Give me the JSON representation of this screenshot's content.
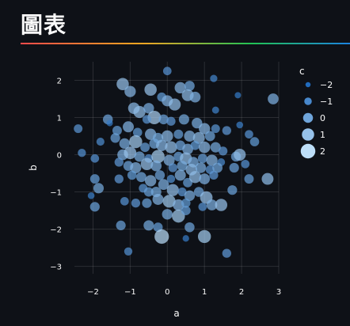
{
  "page": {
    "title": "圖表"
  },
  "chart_data": {
    "type": "scatter",
    "xlabel": "a",
    "ylabel": "b",
    "xlim": [
      -2.5,
      3
    ],
    "ylim": [
      -3.2,
      2.5
    ],
    "x_ticks": [
      -2,
      -1,
      0,
      1,
      2,
      3
    ],
    "y_ticks": [
      -3,
      -2,
      -1,
      0,
      1,
      2
    ],
    "x_tick_labels": [
      "−2",
      "−1",
      "0",
      "1",
      "2",
      "3"
    ],
    "y_tick_labels": [
      "−3",
      "−2",
      "−1",
      "0",
      "1",
      "2"
    ],
    "grid": true,
    "legend": {
      "title": "c",
      "position": "right",
      "items": [
        {
          "label": "−2",
          "value": -2
        },
        {
          "label": "−1",
          "value": -1
        },
        {
          "label": "0",
          "value": 0
        },
        {
          "label": "1",
          "value": 1
        },
        {
          "label": "2",
          "value": 2
        }
      ]
    },
    "colors": {
      "low": "#0d5db6",
      "high": "#d0ecff"
    },
    "points": [
      {
        "a": 0.0,
        "b": 2.25,
        "c": -0.6
      },
      {
        "a": -1.2,
        "b": 1.9,
        "c": 1.0
      },
      {
        "a": -1.0,
        "b": 1.7,
        "c": 0.6
      },
      {
        "a": -0.45,
        "b": 1.75,
        "c": 1.0
      },
      {
        "a": -0.15,
        "b": 1.55,
        "c": -0.3
      },
      {
        "a": 0.35,
        "b": 1.8,
        "c": 0.6
      },
      {
        "a": 0.6,
        "b": 1.85,
        "c": 0.1
      },
      {
        "a": 0.55,
        "b": 1.6,
        "c": 0.8
      },
      {
        "a": 0.75,
        "b": 1.55,
        "c": 0.4
      },
      {
        "a": 0.0,
        "b": 1.45,
        "c": 0.5
      },
      {
        "a": 0.2,
        "b": 1.35,
        "c": 0.9
      },
      {
        "a": -0.9,
        "b": 1.25,
        "c": 0.7
      },
      {
        "a": -0.75,
        "b": 1.15,
        "c": 0.9
      },
      {
        "a": -0.5,
        "b": 1.25,
        "c": 0.3
      },
      {
        "a": -0.35,
        "b": 1.0,
        "c": 1.5
      },
      {
        "a": -0.55,
        "b": 0.95,
        "c": -0.5
      },
      {
        "a": -0.1,
        "b": 0.95,
        "c": 0.0
      },
      {
        "a": 0.1,
        "b": 0.9,
        "c": -0.4
      },
      {
        "a": 0.45,
        "b": 0.95,
        "c": 0.2
      },
      {
        "a": 0.8,
        "b": 0.85,
        "c": 0.3
      },
      {
        "a": 1.0,
        "b": 0.7,
        "c": 0.6
      },
      {
        "a": 1.3,
        "b": 1.2,
        "c": -1.2
      },
      {
        "a": 1.25,
        "b": 2.05,
        "c": -1.1
      },
      {
        "a": 1.9,
        "b": 1.6,
        "c": -1.5
      },
      {
        "a": 2.85,
        "b": 1.5,
        "c": 0.4
      },
      {
        "a": 1.95,
        "b": 0.8,
        "c": -1.3
      },
      {
        "a": 2.2,
        "b": 0.55,
        "c": -0.6
      },
      {
        "a": 2.35,
        "b": 0.35,
        "c": -0.3
      },
      {
        "a": 1.6,
        "b": 0.65,
        "c": -0.4
      },
      {
        "a": 1.3,
        "b": 0.7,
        "c": -0.5
      },
      {
        "a": 1.15,
        "b": 0.5,
        "c": 0.1
      },
      {
        "a": -1.6,
        "b": 0.95,
        "c": 0.0
      },
      {
        "a": -1.55,
        "b": 0.85,
        "c": -1.5
      },
      {
        "a": -1.35,
        "b": 0.65,
        "c": -0.2
      },
      {
        "a": -1.05,
        "b": 0.75,
        "c": 0.5
      },
      {
        "a": -0.8,
        "b": 0.6,
        "c": -0.3
      },
      {
        "a": -0.45,
        "b": 0.55,
        "c": 0.6
      },
      {
        "a": -0.25,
        "b": 0.45,
        "c": 0.2
      },
      {
        "a": 0.0,
        "b": 0.5,
        "c": 0.7
      },
      {
        "a": 0.3,
        "b": 0.55,
        "c": -0.2
      },
      {
        "a": 0.6,
        "b": 0.5,
        "c": 0.5
      },
      {
        "a": 0.85,
        "b": 0.45,
        "c": 0.8
      },
      {
        "a": -2.4,
        "b": 0.7,
        "c": -0.5
      },
      {
        "a": -2.3,
        "b": 0.05,
        "c": -0.7
      },
      {
        "a": -1.8,
        "b": 0.35,
        "c": -0.8
      },
      {
        "a": -1.4,
        "b": 0.45,
        "c": -0.1
      },
      {
        "a": -1.15,
        "b": 0.3,
        "c": 0.3
      },
      {
        "a": -0.85,
        "b": 0.35,
        "c": 1.3
      },
      {
        "a": -0.6,
        "b": 0.2,
        "c": -0.2
      },
      {
        "a": -0.35,
        "b": 0.3,
        "c": 0.1
      },
      {
        "a": -0.15,
        "b": 0.25,
        "c": 0.6
      },
      {
        "a": 0.1,
        "b": 0.2,
        "c": 0.9
      },
      {
        "a": 0.35,
        "b": 0.25,
        "c": 0.0
      },
      {
        "a": 0.55,
        "b": 0.15,
        "c": 0.4
      },
      {
        "a": 0.75,
        "b": 0.25,
        "c": -0.3
      },
      {
        "a": 1.0,
        "b": 0.2,
        "c": 0.7
      },
      {
        "a": 1.3,
        "b": 0.2,
        "c": 0.2
      },
      {
        "a": 1.5,
        "b": 0.1,
        "c": -0.4
      },
      {
        "a": 1.85,
        "b": -0.05,
        "c": 0.0
      },
      {
        "a": 1.95,
        "b": 0.0,
        "c": 0.9
      },
      {
        "a": 2.1,
        "b": -0.25,
        "c": -0.6
      },
      {
        "a": -1.95,
        "b": -0.1,
        "c": -0.6
      },
      {
        "a": -1.2,
        "b": 0.0,
        "c": 0.4
      },
      {
        "a": -1.0,
        "b": 0.05,
        "c": 1.1
      },
      {
        "a": -0.75,
        "b": -0.05,
        "c": 0.2
      },
      {
        "a": -0.5,
        "b": -0.1,
        "c": -0.6
      },
      {
        "a": -0.25,
        "b": -0.05,
        "c": 1.4
      },
      {
        "a": 0.05,
        "b": -0.15,
        "c": 0.5
      },
      {
        "a": 0.3,
        "b": -0.05,
        "c": -0.1
      },
      {
        "a": 0.5,
        "b": -0.1,
        "c": 0.9
      },
      {
        "a": 0.7,
        "b": -0.2,
        "c": 0.3
      },
      {
        "a": 0.95,
        "b": -0.1,
        "c": -0.2
      },
      {
        "a": 1.2,
        "b": -0.15,
        "c": 0.6
      },
      {
        "a": 1.45,
        "b": -0.2,
        "c": -0.9
      },
      {
        "a": -1.3,
        "b": -0.2,
        "c": -0.4
      },
      {
        "a": -1.05,
        "b": -0.3,
        "c": 0.0
      },
      {
        "a": -0.85,
        "b": -0.35,
        "c": 0.5
      },
      {
        "a": -0.55,
        "b": -0.25,
        "c": 1.0
      },
      {
        "a": -0.3,
        "b": -0.3,
        "c": 0.4
      },
      {
        "a": 0.15,
        "b": -0.35,
        "c": -0.4
      },
      {
        "a": 0.4,
        "b": -0.3,
        "c": 0.2
      },
      {
        "a": 0.65,
        "b": -0.4,
        "c": 0.7
      },
      {
        "a": 0.9,
        "b": -0.35,
        "c": 0.3
      },
      {
        "a": 1.15,
        "b": -0.4,
        "c": -0.5
      },
      {
        "a": 1.35,
        "b": -0.35,
        "c": 0.1
      },
      {
        "a": 1.8,
        "b": -0.35,
        "c": -0.1
      },
      {
        "a": 2.2,
        "b": -0.65,
        "c": -0.2
      },
      {
        "a": 2.7,
        "b": -0.65,
        "c": 0.8
      },
      {
        "a": -1.95,
        "b": -0.65,
        "c": -0.2
      },
      {
        "a": -1.85,
        "b": -0.9,
        "c": 0.2
      },
      {
        "a": -2.05,
        "b": -1.1,
        "c": -1.3
      },
      {
        "a": -1.95,
        "b": -1.4,
        "c": -0.1
      },
      {
        "a": -1.3,
        "b": -0.65,
        "c": -0.4
      },
      {
        "a": -1.15,
        "b": -1.25,
        "c": -0.6
      },
      {
        "a": -0.95,
        "b": -0.55,
        "c": -0.3
      },
      {
        "a": -0.7,
        "b": -0.6,
        "c": 0.1
      },
      {
        "a": -0.65,
        "b": -0.9,
        "c": -0.5
      },
      {
        "a": -0.45,
        "b": -0.7,
        "c": 0.6
      },
      {
        "a": -0.2,
        "b": -0.55,
        "c": 0.0
      },
      {
        "a": -0.1,
        "b": -0.8,
        "c": 0.4
      },
      {
        "a": 0.1,
        "b": -0.65,
        "c": -0.7
      },
      {
        "a": 0.35,
        "b": -0.55,
        "c": 0.5
      },
      {
        "a": 0.55,
        "b": -0.75,
        "c": -0.2
      },
      {
        "a": 0.75,
        "b": -0.6,
        "c": 0.9
      },
      {
        "a": 1.0,
        "b": -0.65,
        "c": 0.4
      },
      {
        "a": 1.25,
        "b": -0.55,
        "c": -0.4
      },
      {
        "a": 1.75,
        "b": -0.95,
        "c": -0.1
      },
      {
        "a": -0.5,
        "b": -1.0,
        "c": -0.2
      },
      {
        "a": -0.3,
        "b": -1.0,
        "c": 0.2
      },
      {
        "a": 0.15,
        "b": -0.95,
        "c": 0.9
      },
      {
        "a": 0.4,
        "b": -1.0,
        "c": -0.5
      },
      {
        "a": 0.6,
        "b": -1.1,
        "c": 0.3
      },
      {
        "a": 0.85,
        "b": -1.0,
        "c": 0.0
      },
      {
        "a": 1.05,
        "b": -1.15,
        "c": 1.1
      },
      {
        "a": -0.85,
        "b": -1.3,
        "c": -0.4
      },
      {
        "a": -0.55,
        "b": -1.3,
        "c": -0.1
      },
      {
        "a": -0.25,
        "b": -1.2,
        "c": 0.5
      },
      {
        "a": 0.05,
        "b": -1.25,
        "c": 1.2
      },
      {
        "a": 0.3,
        "b": -1.35,
        "c": 0.6
      },
      {
        "a": 0.5,
        "b": -1.3,
        "c": -0.3
      },
      {
        "a": 0.95,
        "b": -1.4,
        "c": -0.6
      },
      {
        "a": 1.2,
        "b": -1.35,
        "c": 0.4
      },
      {
        "a": 1.45,
        "b": -1.35,
        "c": 1.0
      },
      {
        "a": 0.0,
        "b": -1.6,
        "c": 0.3
      },
      {
        "a": 0.3,
        "b": -1.65,
        "c": 1.3
      },
      {
        "a": 0.5,
        "b": -1.5,
        "c": -0.2
      },
      {
        "a": -1.25,
        "b": -1.9,
        "c": -0.1
      },
      {
        "a": -0.5,
        "b": -1.9,
        "c": 0.2
      },
      {
        "a": -0.25,
        "b": -1.95,
        "c": -0.2
      },
      {
        "a": 0.6,
        "b": -1.95,
        "c": 0.0
      },
      {
        "a": -0.15,
        "b": -2.2,
        "c": 1.9
      },
      {
        "a": 0.5,
        "b": -2.25,
        "c": -1.4
      },
      {
        "a": 1.0,
        "b": -2.2,
        "c": 1.3
      },
      {
        "a": -1.05,
        "b": -2.6,
        "c": -0.7
      },
      {
        "a": 1.6,
        "b": -2.65,
        "c": -0.4
      }
    ]
  }
}
